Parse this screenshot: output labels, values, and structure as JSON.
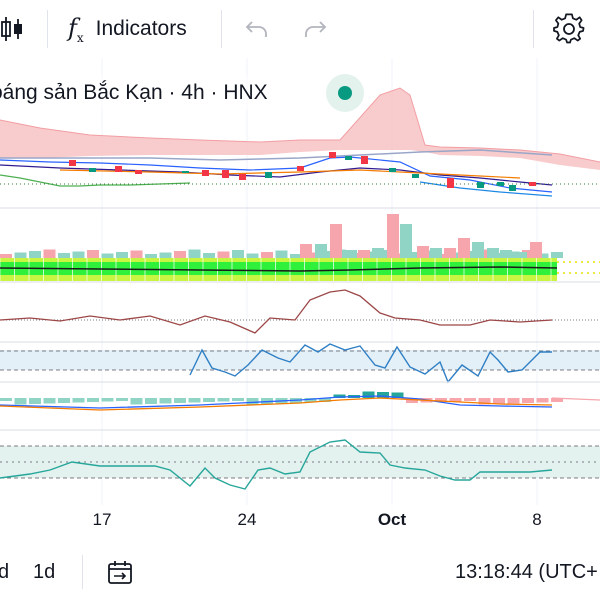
{
  "toolbar": {
    "indicators_label": "Indicators",
    "fx_main": "f",
    "fx_sub": "x",
    "icons": [
      "candlestick-chart-icon",
      "function-icon",
      "undo-icon",
      "redo-icon",
      "settings-gear-icon"
    ]
  },
  "legend": {
    "symbol_text": "oáng sản Bắc Kạn · 4h · HNX",
    "status_color": "#089981"
  },
  "time_axis": [
    {
      "label": "17",
      "bold": false
    },
    {
      "label": "24",
      "bold": false
    },
    {
      "label": "Oct",
      "bold": true
    },
    {
      "label": "8",
      "bold": false
    }
  ],
  "bottom_bar": {
    "intervals": [
      "d",
      "1d"
    ],
    "date_range_icon": "date-range-icon",
    "clock": "13:18:44 (UTC+"
  },
  "colors": {
    "up": "#089981",
    "down": "#f23645",
    "cloud_red": "#f7c5c7",
    "volume_up": "#8fd4c4",
    "volume_down": "#f6a5ac",
    "bright_green": "#2ff03a",
    "band_fill": "#e4f0f8",
    "rsi_fill": "#e3f1ef",
    "price_line": "#9c4646"
  }
}
